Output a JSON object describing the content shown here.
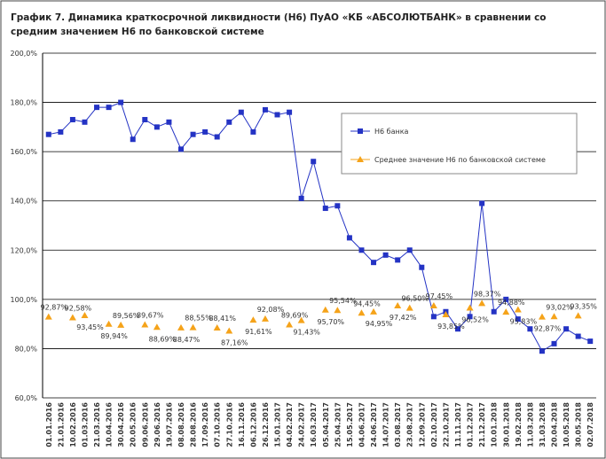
{
  "chart_data": {
    "type": "line",
    "title": "График 7. Динамика краткосрочной ликвидности (Н6) ПуАО «КБ «АБСОЛЮТБАНК» в сравнении со средним значением Н6 по банковской системе",
    "categories": [
      "01.01.2016",
      "21.01.2016",
      "10.02.2016",
      "01.03.2016",
      "21.03.2016",
      "10.04.2016",
      "30.04.2016",
      "20.05.2016",
      "09.06.2016",
      "29.06.2016",
      "19.07.2016",
      "08.08.2016",
      "28.08.2016",
      "17.09.2016",
      "07.10.2016",
      "27.10.2016",
      "16.11.2016",
      "06.12.2016",
      "26.12.2016",
      "15.01.2017",
      "04.02.2017",
      "24.02.2017",
      "16.03.2017",
      "05.04.2017",
      "25.04.2017",
      "15.05.2017",
      "04.06.2017",
      "24.06.2017",
      "14.07.2017",
      "03.08.2017",
      "23.08.2017",
      "12.09.2017",
      "02.10.2017",
      "22.10.2017",
      "11.11.2017",
      "01.12.2017",
      "21.12.2017",
      "10.01.2018",
      "30.01.2018",
      "19.02.2018",
      "11.03.2018",
      "31.03.2018",
      "20.04.2018",
      "10.05.2018",
      "30.05.2018",
      "02.07.2018"
    ],
    "series": [
      {
        "name": "Н6 банка",
        "color": "#2433c4",
        "marker": "square",
        "values": [
          167,
          168,
          173,
          172,
          178,
          178,
          180,
          165,
          173,
          170,
          172,
          161,
          167,
          168,
          166,
          172,
          176,
          168,
          177,
          175,
          176,
          141,
          156,
          137,
          138,
          125,
          120,
          115,
          118,
          116,
          120,
          113,
          93,
          95,
          88,
          93,
          139,
          95,
          100,
          92,
          88,
          79,
          82,
          88,
          85,
          83
        ]
      },
      {
        "name": "Среднее значение Н6 по банковской системе",
        "color": "#f5a31a",
        "marker": "triangle",
        "values": [
          92.87,
          null,
          92.58,
          93.45,
          null,
          89.94,
          89.56,
          null,
          89.67,
          88.69,
          null,
          88.47,
          88.55,
          null,
          88.41,
          87.16,
          null,
          91.61,
          92.08,
          null,
          89.69,
          91.43,
          null,
          95.7,
          95.54,
          null,
          94.45,
          94.95,
          null,
          97.42,
          96.5,
          null,
          97.45,
          93.85,
          null,
          96.52,
          98.37,
          null,
          94.88,
          95.83,
          null,
          92.87,
          93.02,
          null,
          93.35,
          null
        ],
        "value_labels": [
          "92,87%",
          null,
          "92,58%",
          "93,45%",
          null,
          "89,94%",
          "89,56%",
          null,
          "89,67%",
          "88,69%",
          null,
          "88,47%",
          "88,55%",
          null,
          "88,41%",
          "87,16%",
          null,
          "91,61%",
          "92,08%",
          null,
          "89,69%",
          "91,43%",
          null,
          "95,70%",
          "95,54%",
          null,
          "94,45%",
          "94,95%",
          null,
          "97,42%",
          "96,50%",
          null,
          "97,45%",
          "93,85%",
          null,
          "96,52%",
          "98,37%",
          null,
          "94,88%",
          "95,83%",
          null,
          "92,87%",
          "93,02%",
          null,
          "93,35%",
          null
        ]
      }
    ],
    "ylim": [
      60,
      200
    ],
    "yticks": [
      {
        "value": 60,
        "label": "60,0%"
      },
      {
        "value": 80,
        "label": "80,0%"
      },
      {
        "value": 100,
        "label": "100,0%"
      },
      {
        "value": 120,
        "label": "120,0%"
      },
      {
        "value": 140,
        "label": "140,0%"
      },
      {
        "value": 160,
        "label": "160,0%"
      },
      {
        "value": 180,
        "label": "180,0%"
      },
      {
        "value": 200,
        "label": "200,0%"
      }
    ],
    "grid": true,
    "legend": "right"
  }
}
